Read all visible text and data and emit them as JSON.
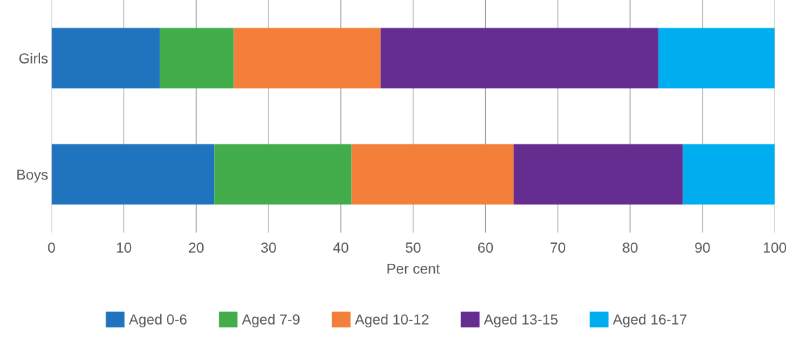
{
  "chart_data": {
    "type": "bar",
    "orientation": "horizontal",
    "stacked": true,
    "xlabel": "Per cent",
    "categories": [
      "Girls",
      "Boys"
    ],
    "series": [
      {
        "name": "Aged 0-6",
        "color": "#1f74bd",
        "values": [
          15,
          22.5
        ]
      },
      {
        "name": "Aged 7-9",
        "color": "#42ad4a",
        "values": [
          10.2,
          19.0
        ]
      },
      {
        "name": "Aged 10-12",
        "color": "#f47f3a",
        "values": [
          20.3,
          22.4
        ]
      },
      {
        "name": "Aged 13-15",
        "color": "#662d91",
        "values": [
          38.4,
          23.4
        ]
      },
      {
        "name": "Aged 16-17",
        "color": "#00aeef",
        "values": [
          16.1,
          12.7
        ]
      }
    ],
    "xlim": [
      0,
      100
    ],
    "xticks": [
      0,
      10,
      20,
      30,
      40,
      50,
      60,
      70,
      80,
      90,
      100
    ],
    "grid": "x",
    "legend": "bottom"
  }
}
